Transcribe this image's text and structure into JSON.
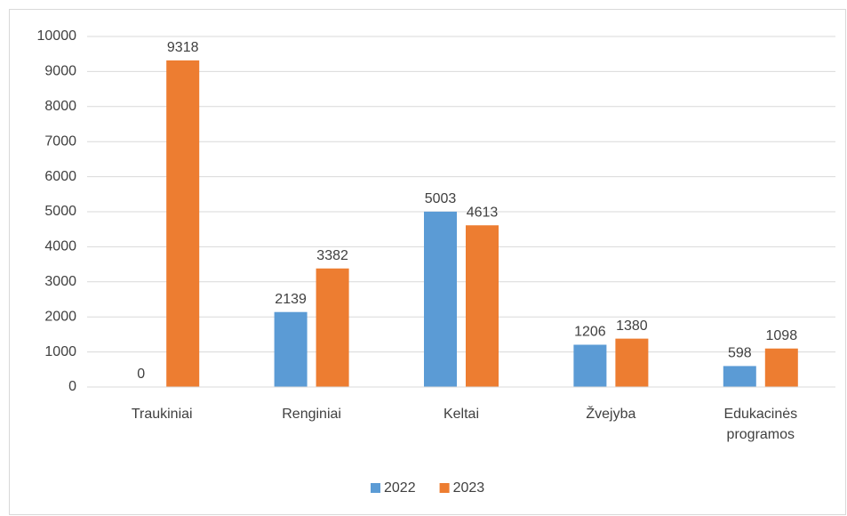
{
  "chart_data": {
    "type": "bar",
    "categories": [
      "Traukiniai",
      "Renginiai",
      "Keltai",
      "Žvejyba",
      "Edukacinės programos"
    ],
    "series": [
      {
        "name": "2022",
        "color": "#5b9bd5",
        "values": [
          0,
          2139,
          5003,
          1206,
          598
        ]
      },
      {
        "name": "2023",
        "color": "#ed7d31",
        "values": [
          9318,
          3382,
          4613,
          1380,
          1098
        ]
      }
    ],
    "ylim": [
      0,
      10000
    ],
    "yticks": [
      0,
      1000,
      2000,
      3000,
      4000,
      5000,
      6000,
      7000,
      8000,
      9000,
      10000
    ],
    "grid": true,
    "legend": "bottom"
  }
}
